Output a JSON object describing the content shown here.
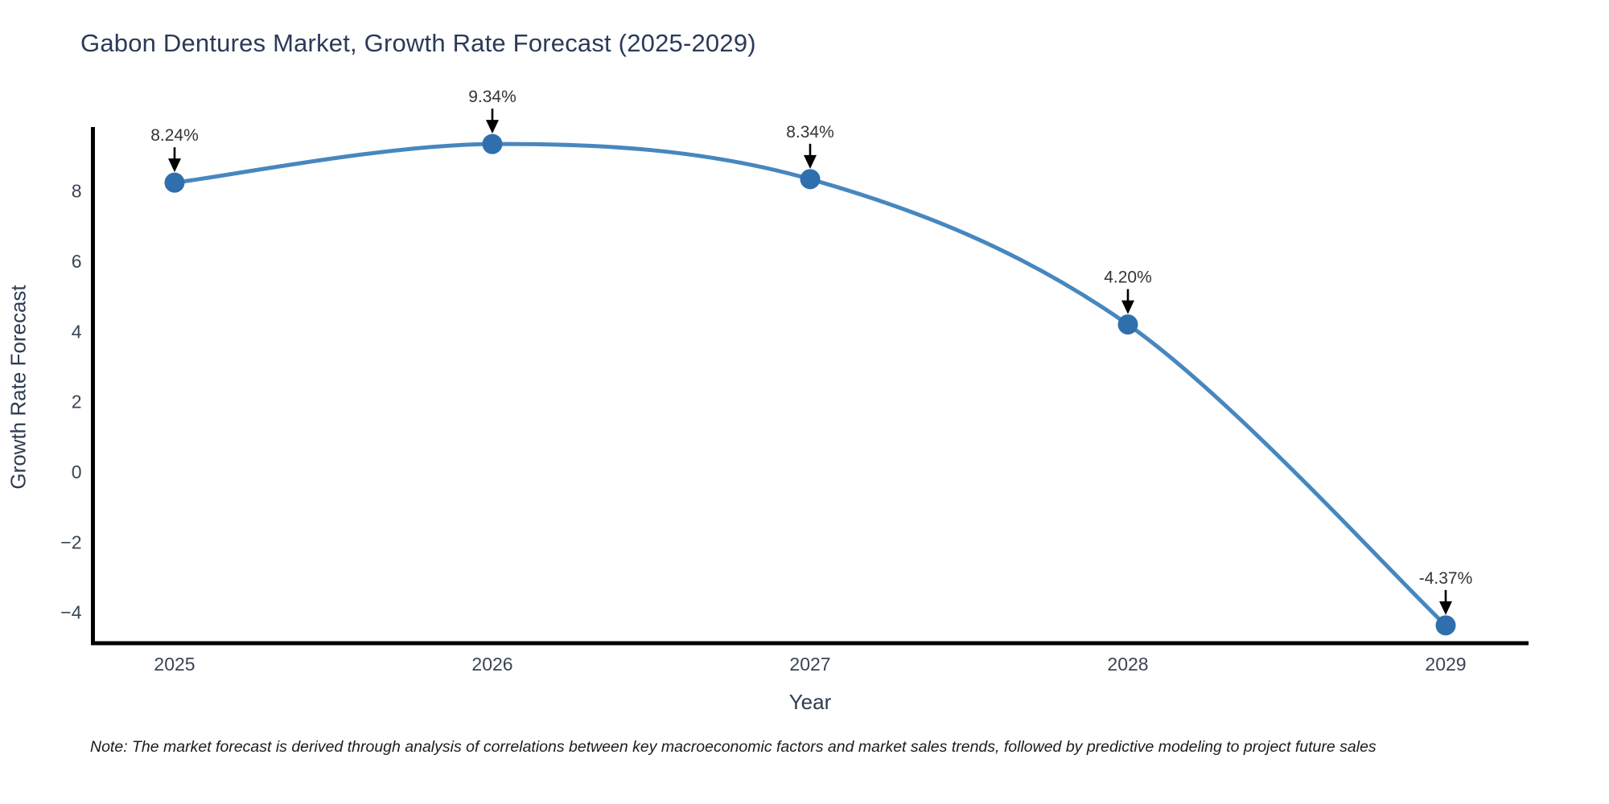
{
  "title": "Gabon Dentures Market, Growth Rate Forecast (2025-2029)",
  "note": "Note: The market forecast is derived through analysis of correlations between key macroeconomic factors and market sales trends, followed by predictive modeling to project future sales",
  "chart_data": {
    "type": "line",
    "title": "Gabon Dentures Market, Growth Rate Forecast (2025-2029)",
    "xlabel": "Year",
    "ylabel": "Growth Rate Forecast",
    "categories": [
      2025,
      2026,
      2027,
      2028,
      2029
    ],
    "series": [
      {
        "name": "Growth Rate Forecast",
        "values": [
          8.24,
          9.34,
          8.34,
          4.2,
          -4.37
        ],
        "point_labels": [
          "8.24%",
          "9.34%",
          "8.34%",
          "4.20%",
          "-4.37%"
        ]
      }
    ],
    "yticks": [
      8,
      6,
      4,
      2,
      0,
      -2,
      -4
    ],
    "ylim": [
      -4.9,
      9.85
    ],
    "grid": false,
    "legend_position": "none",
    "colors": {
      "line": "#4787bf",
      "marker": "#2f6fad",
      "axis": "#000000",
      "annotation_arrow": "#000000",
      "annotation_text": "#333333",
      "tick_text": "#3a4454",
      "title_text": "#2b3a57",
      "background": "#ffffff"
    }
  }
}
